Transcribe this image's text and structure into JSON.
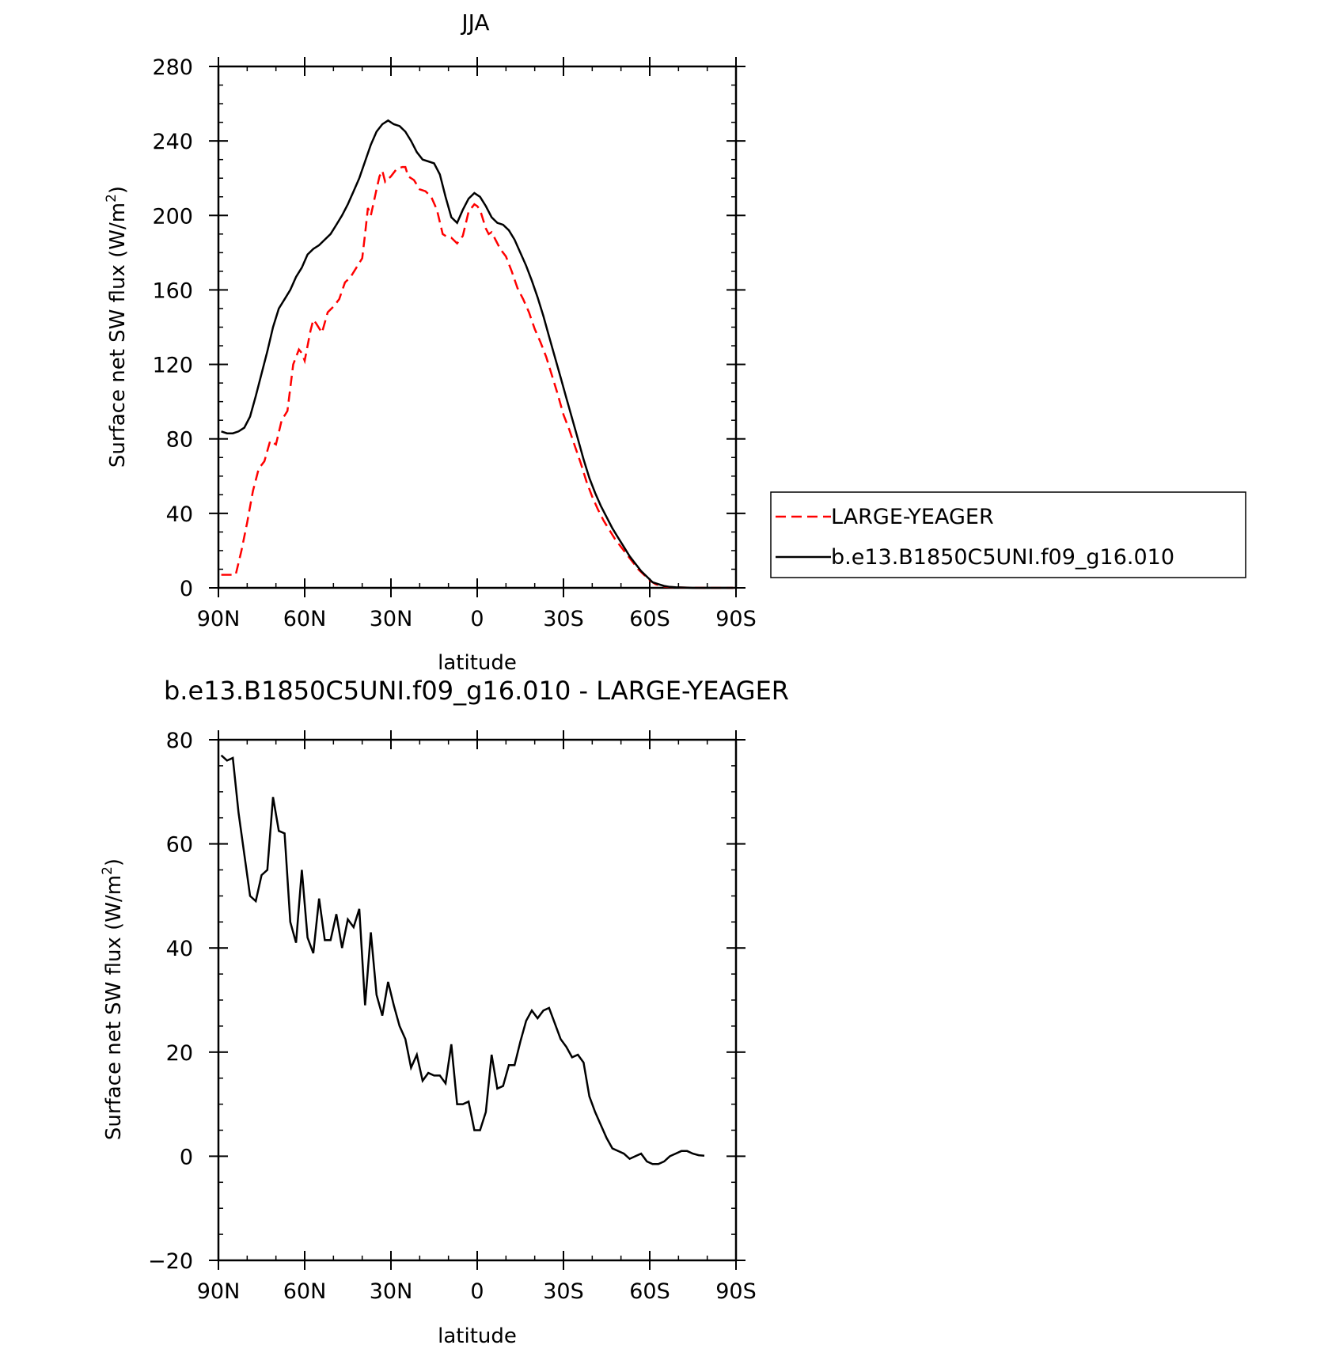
{
  "colors": {
    "red": "#ff0000",
    "black": "#000000",
    "background": "#ffffff"
  },
  "chart_data": [
    {
      "type": "line",
      "title": "JJA",
      "xlabel": "latitude",
      "ylabel_main": "Surface net SW flux (W/m",
      "ylabel_sup": "2",
      "ylabel_close": ")",
      "xlim": [
        90,
        -90
      ],
      "ylim": [
        0,
        280
      ],
      "x_ticks": [
        90,
        60,
        30,
        0,
        -30,
        -60,
        -90
      ],
      "x_tick_labels": [
        "90N",
        "60N",
        "30N",
        "0",
        "30S",
        "60S",
        "90S"
      ],
      "y_ticks": [
        0,
        40,
        80,
        120,
        160,
        200,
        240,
        280
      ],
      "y_tick_labels": [
        "0",
        "40",
        "80",
        "120",
        "160",
        "200",
        "240",
        "280"
      ],
      "legend": {
        "placement": "right",
        "labels": [
          "LARGE-YEAGER",
          "b.e13.B1850C5UNI.f09_g16.010"
        ]
      },
      "series": [
        {
          "name": "LARGE-YEAGER",
          "color": "#ff0000",
          "style": "dashed",
          "x": [
            89,
            87,
            84,
            82,
            80,
            78,
            76,
            74,
            72,
            70,
            68,
            66,
            64,
            62,
            61,
            60,
            58,
            57,
            56,
            54,
            52,
            50,
            48,
            46,
            44,
            42,
            40,
            39,
            38,
            37,
            35,
            34,
            33,
            32,
            30,
            28,
            26,
            25,
            24,
            22,
            20,
            18,
            16,
            14,
            12,
            11,
            10,
            9,
            7,
            5,
            3,
            1,
            0,
            -1,
            -3,
            -4,
            -5,
            -8,
            -10,
            -12,
            -14,
            -16,
            -18,
            -20,
            -22,
            -24,
            -26,
            -28,
            -30,
            -32,
            -34,
            -36,
            -38,
            -40,
            -42,
            -44,
            -46,
            -48,
            -50,
            -52,
            -54,
            -56,
            -58,
            -60,
            -62,
            -64,
            -66,
            -70,
            -75,
            -80,
            -85,
            -89
          ],
          "values": [
            7,
            7,
            7,
            20,
            35,
            52,
            64,
            68,
            79,
            77,
            90,
            95,
            120,
            128,
            126,
            122,
            138,
            144,
            142,
            137,
            148,
            151,
            155,
            164,
            167,
            172,
            177,
            190,
            204,
            200,
            214,
            221,
            224,
            218,
            221,
            225,
            226,
            226,
            221,
            219,
            214,
            213,
            210,
            203,
            190,
            189,
            188,
            188,
            185,
            189,
            202,
            206,
            205,
            203,
            193,
            190,
            191,
            182,
            178,
            170,
            161,
            155,
            148,
            139,
            132,
            124,
            114,
            104,
            93,
            85,
            76,
            67,
            57,
            49,
            42,
            36,
            31,
            26,
            22,
            18,
            14,
            10,
            7,
            4,
            2,
            1,
            0.5,
            0.2,
            0.1,
            0,
            0,
            0
          ]
        },
        {
          "name": "b.e13.B1850C5UNI.f09_g16.010",
          "color": "#000000",
          "style": "solid",
          "x": [
            89,
            87,
            85,
            83,
            81,
            79,
            77,
            75,
            73,
            71,
            69,
            67,
            65,
            63,
            61,
            59,
            57,
            55,
            53,
            51,
            49,
            47,
            45,
            43,
            41,
            39,
            37,
            35,
            33,
            31,
            29,
            27,
            25,
            23,
            21,
            19,
            17,
            15,
            13,
            11,
            9,
            7,
            5,
            3,
            1,
            -1,
            -3,
            -5,
            -7,
            -9,
            -11,
            -13,
            -15,
            -17,
            -19,
            -21,
            -23,
            -25,
            -27,
            -29,
            -31,
            -33,
            -35,
            -37,
            -39,
            -41,
            -43,
            -45,
            -47,
            -49,
            -51,
            -53,
            -55,
            -57,
            -59,
            -61,
            -63,
            -65,
            -67,
            -69,
            -71,
            -73,
            -75,
            -80,
            -85,
            -89
          ],
          "values": [
            84,
            83,
            83,
            84,
            86,
            92,
            103,
            115,
            127,
            140,
            150,
            155,
            160,
            167,
            172,
            179,
            182,
            184,
            187,
            190,
            195,
            200,
            206,
            213,
            220,
            229,
            238,
            245,
            249,
            251,
            249,
            248,
            245,
            240,
            234,
            230,
            229,
            228,
            222,
            210,
            199,
            196,
            203,
            209,
            212,
            210,
            205,
            199,
            196,
            195,
            192,
            187,
            180,
            173,
            165,
            156,
            146,
            135,
            124,
            113,
            102,
            91,
            80,
            69,
            59,
            51,
            44,
            38,
            32,
            27,
            22,
            17,
            13,
            9,
            6,
            3,
            2,
            1,
            0.5,
            0.3,
            0.2,
            0.1,
            0,
            0,
            0,
            0
          ]
        }
      ]
    },
    {
      "type": "line",
      "title": "b.e13.B1850C5UNI.f09_g16.010 - LARGE-YEAGER",
      "xlabel": "latitude",
      "ylabel_main": "Surface net SW flux (W/m",
      "ylabel_sup": "2",
      "ylabel_close": ")",
      "xlim": [
        90,
        -90
      ],
      "ylim": [
        -20,
        80
      ],
      "x_ticks": [
        90,
        60,
        30,
        0,
        -30,
        -60,
        -90
      ],
      "x_tick_labels": [
        "90N",
        "60N",
        "30N",
        "0",
        "30S",
        "60S",
        "90S"
      ],
      "y_ticks": [
        -20,
        0,
        20,
        40,
        60,
        80
      ],
      "y_tick_labels": [
        "−20",
        "0",
        "20",
        "40",
        "60",
        "80"
      ],
      "series": [
        {
          "name": "b.e13.B1850C5UNI.f09_g16.010 - LARGE-YEAGER",
          "color": "#000000",
          "style": "solid",
          "x": [
            89,
            87,
            85,
            83,
            81,
            79,
            77,
            75,
            73,
            71,
            69,
            67,
            65,
            63,
            61,
            59,
            57,
            55,
            53,
            51,
            49,
            47,
            45,
            43,
            41,
            39,
            37,
            35,
            33,
            31,
            29,
            27,
            25,
            23,
            21,
            19,
            17,
            15,
            13,
            11,
            9,
            7,
            5,
            3,
            1,
            -1,
            -3,
            -5,
            -7,
            -9,
            -11,
            -13,
            -15,
            -17,
            -19,
            -21,
            -23,
            -25,
            -27,
            -29,
            -31,
            -33,
            -35,
            -37,
            -39,
            -41,
            -43,
            -45,
            -47,
            -49,
            -51,
            -53,
            -55,
            -57,
            -59,
            -61,
            -63,
            -65,
            -67,
            -69,
            -71,
            -73,
            -75,
            -77,
            -79
          ],
          "values": [
            77,
            76,
            76.5,
            66,
            58,
            50,
            49,
            54,
            55,
            69,
            62.5,
            62,
            45,
            41,
            55,
            42,
            39,
            49.5,
            41.5,
            41.5,
            46.5,
            40,
            45.5,
            44,
            47.5,
            29,
            43,
            31,
            27,
            33.5,
            29,
            25,
            22.5,
            17,
            19.5,
            14.5,
            16,
            15.5,
            15.5,
            14,
            21.5,
            10,
            10,
            10.5,
            5,
            5,
            8.5,
            19.5,
            13,
            13.5,
            17.5,
            17.5,
            22,
            26,
            28,
            26.5,
            28,
            28.5,
            25.5,
            22.5,
            21,
            19,
            19.5,
            18,
            11.5,
            8.5,
            6,
            3.5,
            1.5,
            1,
            0.5,
            -0.5,
            0,
            0.5,
            -1,
            -1.5,
            -1.5,
            -1,
            0,
            0.5,
            1,
            1,
            0.5,
            0.2,
            0.1
          ]
        }
      ]
    }
  ]
}
